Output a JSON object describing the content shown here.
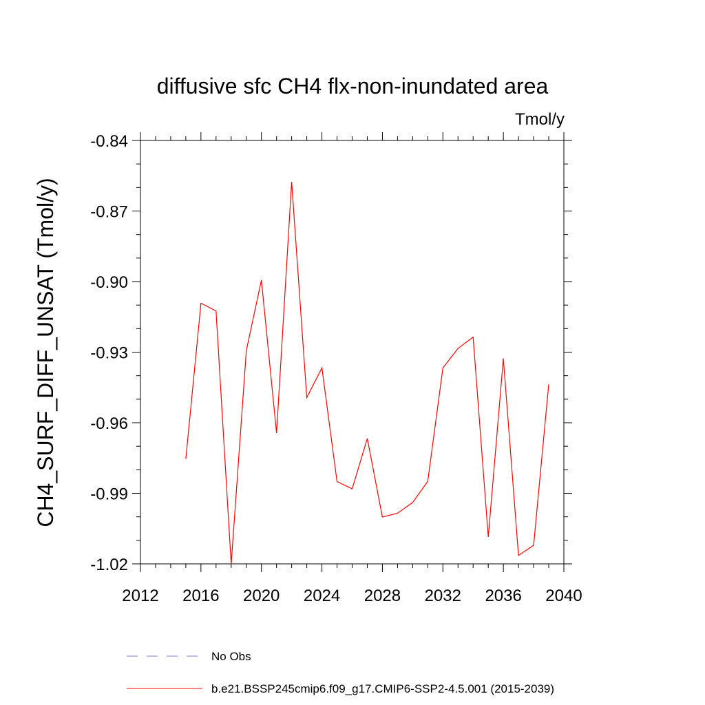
{
  "chart_data": {
    "type": "line",
    "title": "diffusive sfc CH4 flx-non-inundated area",
    "units_label": "Tmol/y",
    "ylabel": "CH4_SURF_DIFF_UNSAT  (Tmol/y)",
    "xlabel": "",
    "xlim": [
      2012,
      2040
    ],
    "ylim": [
      -1.02,
      -0.84
    ],
    "x_ticks": [
      2012,
      2016,
      2020,
      2024,
      2028,
      2032,
      2036,
      2040
    ],
    "x_tick_labels": [
      "2012",
      "2016",
      "2020",
      "2024",
      "2028",
      "2032",
      "2036",
      "2040"
    ],
    "x_minor_step": 1,
    "y_ticks": [
      -0.84,
      -0.87,
      -0.9,
      -0.93,
      -0.96,
      -0.99,
      -1.02
    ],
    "y_tick_labels": [
      "-0.84",
      "-0.87",
      "-0.90",
      "-0.93",
      "-0.96",
      "-0.99",
      "-1.02"
    ],
    "y_minor_step": 0.01,
    "grid": false,
    "legend_position": "bottom",
    "series": [
      {
        "name": "b.e21.BSSP245cmip6.f09_g17.CMIP6-SSP2-4.5.001 (2015-2039)",
        "color": "#ff0000",
        "dash": "solid",
        "x": [
          2015,
          2016,
          2017,
          2018,
          2019,
          2020,
          2021,
          2022,
          2023,
          2024,
          2025,
          2026,
          2027,
          2028,
          2029,
          2030,
          2031,
          2032,
          2033,
          2034,
          2035,
          2036,
          2037,
          2038,
          2039
        ],
        "values": [
          -0.9754,
          -0.9092,
          -0.9125,
          -1.0201,
          -0.9293,
          -0.8994,
          -0.9644,
          -0.8576,
          -0.9493,
          -0.9367,
          -0.985,
          -0.9881,
          -0.9667,
          -1.0001,
          -0.9985,
          -0.9939,
          -0.9849,
          -0.9367,
          -0.9284,
          -0.9236,
          -1.0086,
          -0.9327,
          -1.0164,
          -1.0121,
          -0.9437
        ]
      }
    ],
    "legend": [
      {
        "label": "No Obs",
        "color": "#7d7dc8",
        "dash": "dashed"
      },
      {
        "label": "b.e21.BSSP245cmip6.f09_g17.CMIP6-SSP2-4.5.001 (2015-2039)",
        "color": "#ff0000",
        "dash": "solid"
      }
    ]
  }
}
